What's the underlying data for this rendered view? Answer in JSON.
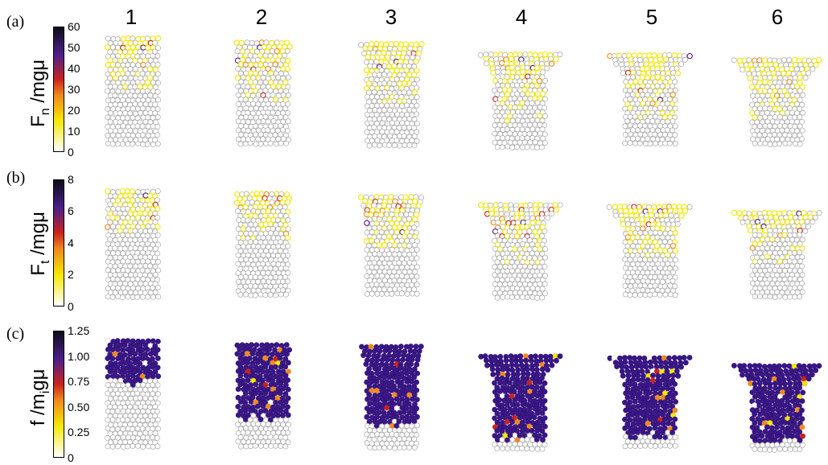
{
  "figure": {
    "column_labels": [
      "1",
      "2",
      "3",
      "4",
      "5",
      "6"
    ],
    "rows": [
      {
        "panel_letter": "(a)",
        "ylabel_main": "F",
        "ylabel_sub": "n",
        "ylabel_rest": " /mgμ",
        "colorbar_ticks": [
          "60",
          "50",
          "40",
          "30",
          "20",
          "10",
          "0"
        ],
        "colormap": "hot-purple (white → yellow → orange → red → purple → black)"
      },
      {
        "panel_letter": "(b)",
        "ylabel_main": "F",
        "ylabel_sub": "t",
        "ylabel_rest": " /mgμ",
        "colorbar_ticks": [
          "8",
          "6",
          "4",
          "2",
          "0"
        ],
        "colormap": "hot-purple (white → yellow → orange → red → purple → black)"
      },
      {
        "panel_letter": "(c)",
        "ylabel_main": "f /m",
        "ylabel_sub": "i",
        "ylabel_rest": "gμ",
        "colorbar_ticks": [
          "1.25",
          "1.00",
          "0.75",
          "0.50",
          "0.25",
          "0"
        ],
        "colormap": "hot-purple (white → yellow → orange → red → purple → black)"
      }
    ],
    "colors": {
      "grain_fill": "#ffffff",
      "grain_stroke": "#9a9a9a",
      "mobilized": "#3a168a",
      "yellow": "#f5e800",
      "orange": "#f08a1e",
      "red": "#c9241d",
      "purple": "#4b1e8c",
      "black": "#0d0b1a"
    }
  }
}
